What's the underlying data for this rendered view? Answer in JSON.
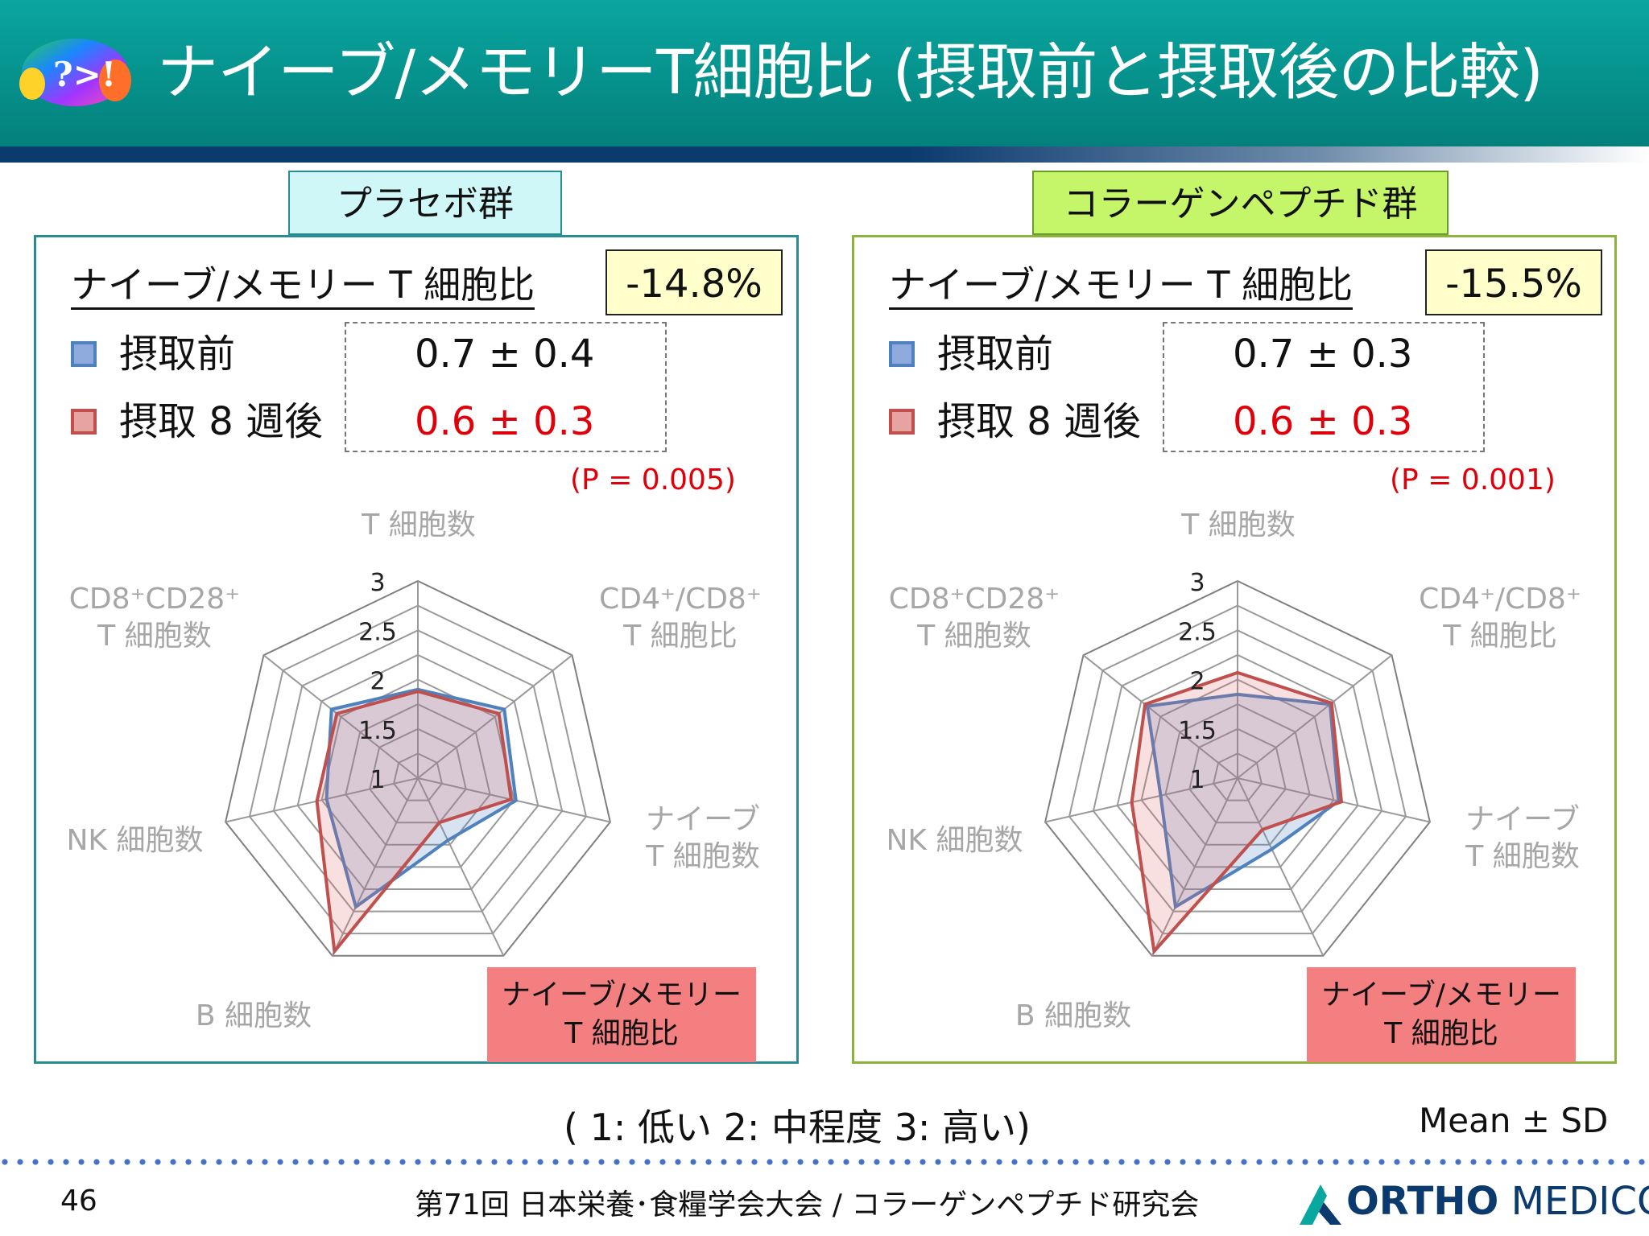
{
  "title": "ナイーブ/メモリーT細胞比 (摂取前と摂取後の比較)",
  "logo_text": "?>!",
  "colors": {
    "before": "#4f81bd",
    "after": "#c0504d",
    "before_fill": "#aebfe0",
    "after_fill": "#f4c4c3",
    "teal": "#0aa6a0",
    "navy": "#0b3a6e",
    "placebo_bg": "#d0f7f8",
    "collagen_bg": "#c5f569",
    "highlight_bg": "#f47f80"
  },
  "legend": {
    "before": "摂取前",
    "after": "摂取 8 週後"
  },
  "ratio_label": "ナイーブ/メモリー T 細胞比",
  "axis_labels": {
    "t_cells": "T 細胞数",
    "cd4_cd8_l1": "CD4⁺/CD8⁺",
    "cd4_cd8_l2": "T 細胞比",
    "naive_l1": "ナイーブ",
    "naive_l2": "T 細胞数",
    "ratio_l1": "ナイーブ/メモリー",
    "ratio_l2": "T 細胞比",
    "b_cells": "B 細胞数",
    "nk_cells": "NK 細胞数",
    "cd8_cd28_l1": "CD8⁺CD28⁺",
    "cd8_cd28_l2": "T 細胞数"
  },
  "panels": [
    {
      "group": "プラセボ群",
      "change": "-14.8%",
      "before_value": "0.7 ± 0.4",
      "after_value": "0.6 ± 0.3",
      "p_value": "(P = 0.005)"
    },
    {
      "group": "コラーゲンペプチド群",
      "change": "-15.5%",
      "before_value": "0.7 ± 0.3",
      "after_value": "0.6 ± 0.3",
      "p_value": "(P = 0.001)"
    }
  ],
  "chart_data": [
    {
      "type": "radar",
      "title": "プラセボ群",
      "categories": [
        "T 細胞数",
        "CD4⁺/CD8⁺ T 細胞比",
        "ナイーブ T 細胞数",
        "ナイーブ/メモリー T 細胞比",
        "B 細胞数",
        "NK 細胞数",
        "CD8⁺CD28⁺ T 細胞数"
      ],
      "rlim": [
        1,
        3
      ],
      "ticks": [
        "1",
        "1.5",
        "2",
        "2.5",
        "3"
      ],
      "series": [
        {
          "name": "摂取前",
          "values": [
            1.9,
            2.12,
            2.02,
            1.7,
            2.45,
            1.95,
            2.12
          ]
        },
        {
          "name": "摂取 8 週後",
          "values": [
            1.88,
            2.05,
            1.97,
            1.5,
            2.95,
            2.05,
            2.05
          ]
        }
      ]
    },
    {
      "type": "radar",
      "title": "コラーゲンペプチド群",
      "categories": [
        "T 細胞数",
        "CD4⁺/CD8⁺ T 細胞比",
        "ナイーブ T 細胞数",
        "ナイーブ/メモリー T 細胞比",
        "B 細胞数",
        "NK 細胞数",
        "CD8⁺CD28⁺ T 細胞数"
      ],
      "rlim": [
        1,
        3
      ],
      "ticks": [
        "1",
        "1.5",
        "2",
        "2.5",
        "3"
      ],
      "series": [
        {
          "name": "摂取前",
          "values": [
            1.85,
            2.2,
            2.05,
            1.8,
            2.45,
            1.8,
            2.17
          ]
        },
        {
          "name": "摂取 8 週後",
          "values": [
            2.07,
            2.22,
            2.08,
            1.58,
            2.95,
            2.1,
            2.2
          ]
        }
      ]
    }
  ],
  "scale_note": "( 1: 低い   2: 中程度   3: 高い)",
  "mean_sd": "Mean ± SD",
  "page_number": "46",
  "footer": "第71回 日本栄養･食糧学会大会 / コラーゲンペプチド研究会",
  "brand": {
    "part1": "ORTHO",
    "part2": " MEDICO"
  }
}
